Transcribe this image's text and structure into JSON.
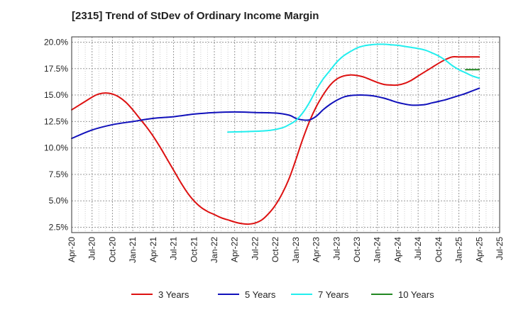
{
  "title": "[2315]  Trend of StDev of Ordinary Income Margin",
  "chart_data": {
    "type": "line",
    "title": "[2315]  Trend of StDev of Ordinary Income Margin",
    "xlabel": "",
    "ylabel": "",
    "x_ticks": [
      "Apr-20",
      "Jul-20",
      "Oct-20",
      "Jan-21",
      "Apr-21",
      "Jul-21",
      "Oct-21",
      "Jan-22",
      "Apr-22",
      "Jul-22",
      "Oct-22",
      "Jan-23",
      "Apr-23",
      "Jul-23",
      "Oct-23",
      "Jan-24",
      "Apr-24",
      "Jul-24",
      "Oct-24",
      "Jan-25",
      "Apr-25",
      "Jul-25"
    ],
    "y_ticks": [
      "2.5%",
      "5.0%",
      "7.5%",
      "10.0%",
      "12.5%",
      "15.0%",
      "17.5%",
      "20.0%"
    ],
    "ylim": [
      2.0,
      20.5
    ],
    "grid": true,
    "legend_position": "bottom",
    "series": [
      {
        "name": "3 Years",
        "color": "#dd1111",
        "x": [
          "2020-04",
          "2020-07",
          "2020-08",
          "2020-09",
          "2020-10",
          "2020-11",
          "2020-12",
          "2021-01",
          "2021-02",
          "2021-03",
          "2021-04",
          "2021-05",
          "2021-06",
          "2021-07",
          "2021-08",
          "2021-09",
          "2021-10",
          "2021-11",
          "2021-12",
          "2022-01",
          "2022-02",
          "2022-03",
          "2022-04",
          "2022-05",
          "2022-06",
          "2022-07",
          "2022-08",
          "2022-09",
          "2022-10",
          "2022-11",
          "2022-12",
          "2023-01",
          "2023-02",
          "2023-03",
          "2023-04",
          "2023-05",
          "2023-06",
          "2023-07",
          "2023-08",
          "2023-09",
          "2023-10",
          "2023-11",
          "2023-12",
          "2024-01",
          "2024-02",
          "2024-03",
          "2024-04",
          "2024-05",
          "2024-06",
          "2024-07",
          "2024-08",
          "2024-09",
          "2024-10",
          "2024-11",
          "2024-12",
          "2025-01",
          "2025-02",
          "2025-03",
          "2025-04"
        ],
        "values": [
          13.6,
          14.8,
          15.1,
          15.2,
          15.1,
          14.8,
          14.3,
          13.6,
          12.8,
          12.0,
          11.1,
          10.1,
          9.0,
          7.9,
          6.8,
          5.8,
          5.0,
          4.4,
          4.0,
          3.7,
          3.4,
          3.2,
          3.0,
          2.85,
          2.8,
          2.9,
          3.2,
          3.8,
          4.6,
          5.7,
          7.1,
          8.9,
          10.8,
          12.5,
          13.9,
          15.0,
          15.9,
          16.5,
          16.8,
          16.9,
          16.85,
          16.7,
          16.45,
          16.2,
          16.0,
          15.95,
          15.95,
          16.1,
          16.4,
          16.8,
          17.2,
          17.6,
          18.0,
          18.35,
          18.6,
          18.6,
          18.6,
          18.6,
          18.6
        ],
        "note_hidden": false
      },
      {
        "name": "5 Years",
        "color": "#1111bb",
        "x": [
          "2020-04",
          "2020-07",
          "2020-10",
          "2021-01",
          "2021-04",
          "2021-07",
          "2021-10",
          "2022-01",
          "2022-04",
          "2022-07",
          "2022-10",
          "2022-12",
          "2023-01",
          "2023-02",
          "2023-03",
          "2023-04",
          "2023-05",
          "2023-06",
          "2023-07",
          "2023-08",
          "2023-09",
          "2023-10",
          "2023-11",
          "2023-12",
          "2024-01",
          "2024-02",
          "2024-03",
          "2024-04",
          "2024-05",
          "2024-06",
          "2024-07",
          "2024-08",
          "2024-09",
          "2024-10",
          "2024-11",
          "2024-12",
          "2025-01",
          "2025-02",
          "2025-03",
          "2025-04"
        ],
        "values": [
          10.9,
          11.7,
          12.2,
          12.5,
          12.8,
          12.95,
          13.2,
          13.35,
          13.4,
          13.35,
          13.3,
          13.1,
          12.8,
          12.65,
          12.65,
          13.0,
          13.6,
          14.1,
          14.5,
          14.8,
          14.95,
          15.0,
          15.0,
          14.95,
          14.85,
          14.7,
          14.5,
          14.3,
          14.15,
          14.05,
          14.05,
          14.1,
          14.25,
          14.4,
          14.55,
          14.75,
          14.95,
          15.15,
          15.4,
          15.65
        ]
      },
      {
        "name": "7 Years",
        "color": "#22eeee",
        "x": [
          "2022-03",
          "2022-06",
          "2022-09",
          "2022-11",
          "2022-12",
          "2023-01",
          "2023-02",
          "2023-03",
          "2023-04",
          "2023-05",
          "2023-06",
          "2023-07",
          "2023-08",
          "2023-09",
          "2023-10",
          "2023-11",
          "2023-12",
          "2024-01",
          "2024-02",
          "2024-03",
          "2024-04",
          "2024-05",
          "2024-06",
          "2024-07",
          "2024-08",
          "2024-09",
          "2024-10",
          "2024-11",
          "2024-12",
          "2025-01",
          "2025-02",
          "2025-03",
          "2025-04"
        ],
        "values": [
          11.5,
          11.55,
          11.65,
          11.9,
          12.2,
          12.6,
          13.3,
          14.3,
          15.5,
          16.5,
          17.3,
          18.1,
          18.7,
          19.1,
          19.45,
          19.65,
          19.75,
          19.8,
          19.8,
          19.75,
          19.7,
          19.6,
          19.5,
          19.4,
          19.25,
          19.0,
          18.7,
          18.3,
          17.8,
          17.4,
          17.1,
          16.8,
          16.6
        ]
      },
      {
        "name": "10 Years",
        "color": "#228822",
        "x": [
          "2025-02",
          "2025-03",
          "2025-04"
        ],
        "values": [
          17.4,
          17.4,
          17.4
        ]
      }
    ]
  }
}
